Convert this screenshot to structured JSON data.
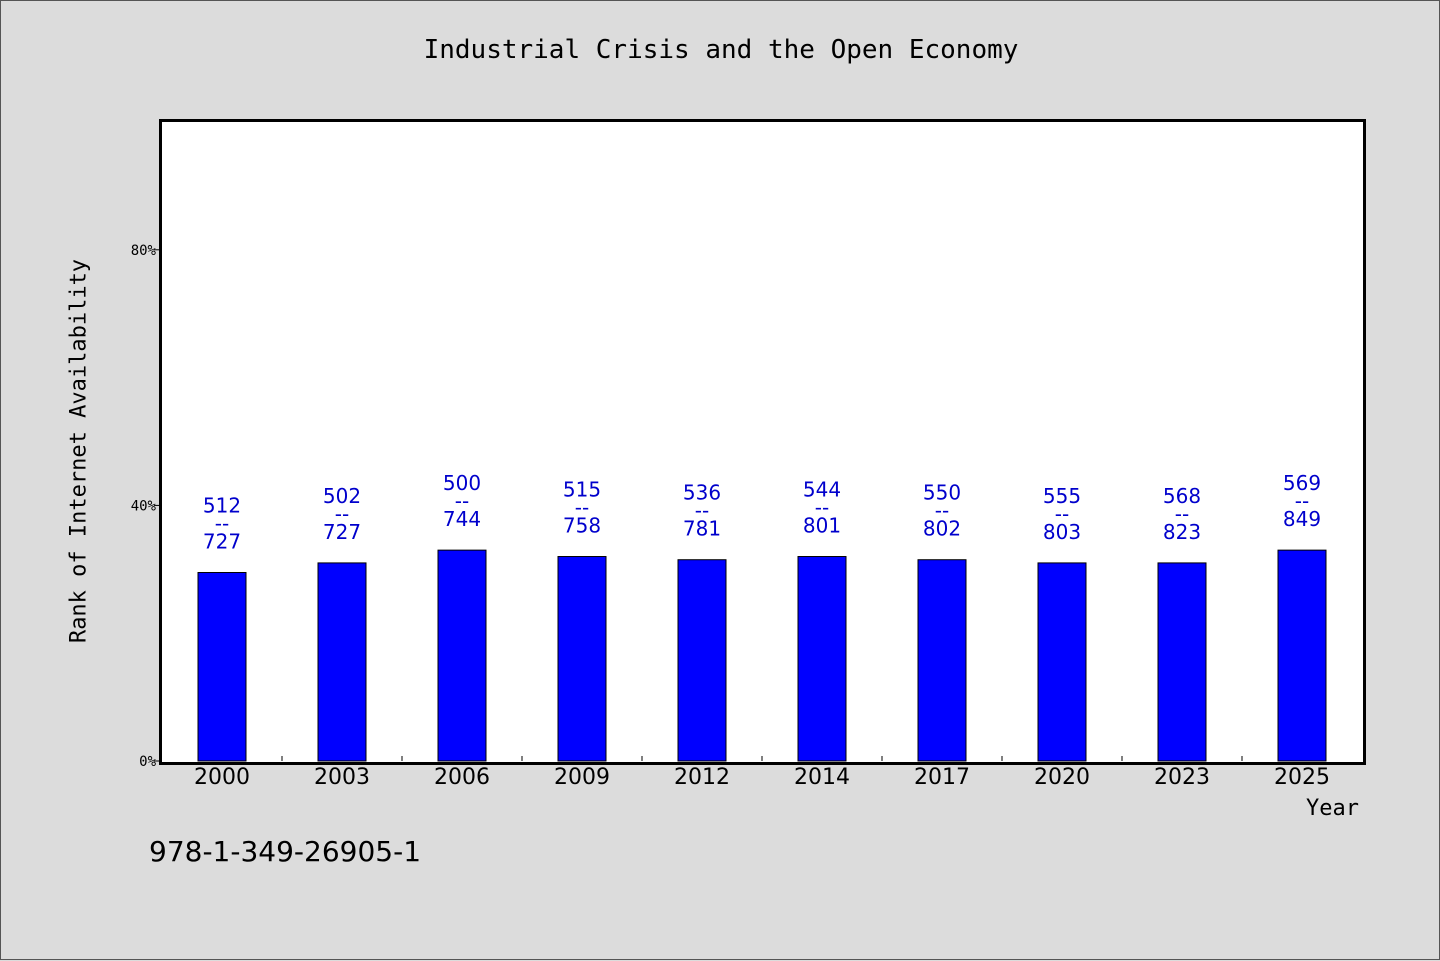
{
  "chart_data": {
    "type": "bar",
    "title": "Industrial Crisis and the Open Economy",
    "xlabel": "Year",
    "ylabel": "Rank of Internet Availability",
    "ylim": [
      0,
      100
    ],
    "yticks": [
      {
        "value": 0,
        "label": "0%"
      },
      {
        "value": 40,
        "label": "40%"
      },
      {
        "value": 80,
        "label": "80%"
      }
    ],
    "categories": [
      "2000",
      "2003",
      "2006",
      "2009",
      "2012",
      "2014",
      "2017",
      "2020",
      "2023",
      "2025"
    ],
    "values": [
      29.5,
      31,
      33,
      32,
      31.5,
      32,
      31.5,
      31,
      31,
      33
    ],
    "data_labels": [
      {
        "top": "512",
        "mid": "--",
        "bottom": "727"
      },
      {
        "top": "502",
        "mid": "--",
        "bottom": "727"
      },
      {
        "top": "500",
        "mid": "--",
        "bottom": "744"
      },
      {
        "top": "515",
        "mid": "--",
        "bottom": "758"
      },
      {
        "top": "536",
        "mid": "--",
        "bottom": "781"
      },
      {
        "top": "544",
        "mid": "--",
        "bottom": "801"
      },
      {
        "top": "550",
        "mid": "--",
        "bottom": "802"
      },
      {
        "top": "555",
        "mid": "--",
        "bottom": "803"
      },
      {
        "top": "568",
        "mid": "--",
        "bottom": "823"
      },
      {
        "top": "569",
        "mid": "--",
        "bottom": "849"
      }
    ],
    "bar_color": "#0000ff",
    "label_color": "#0000cc",
    "grid": false,
    "legend": "none"
  },
  "footer": {
    "isbn": "978-1-349-26905-1"
  }
}
